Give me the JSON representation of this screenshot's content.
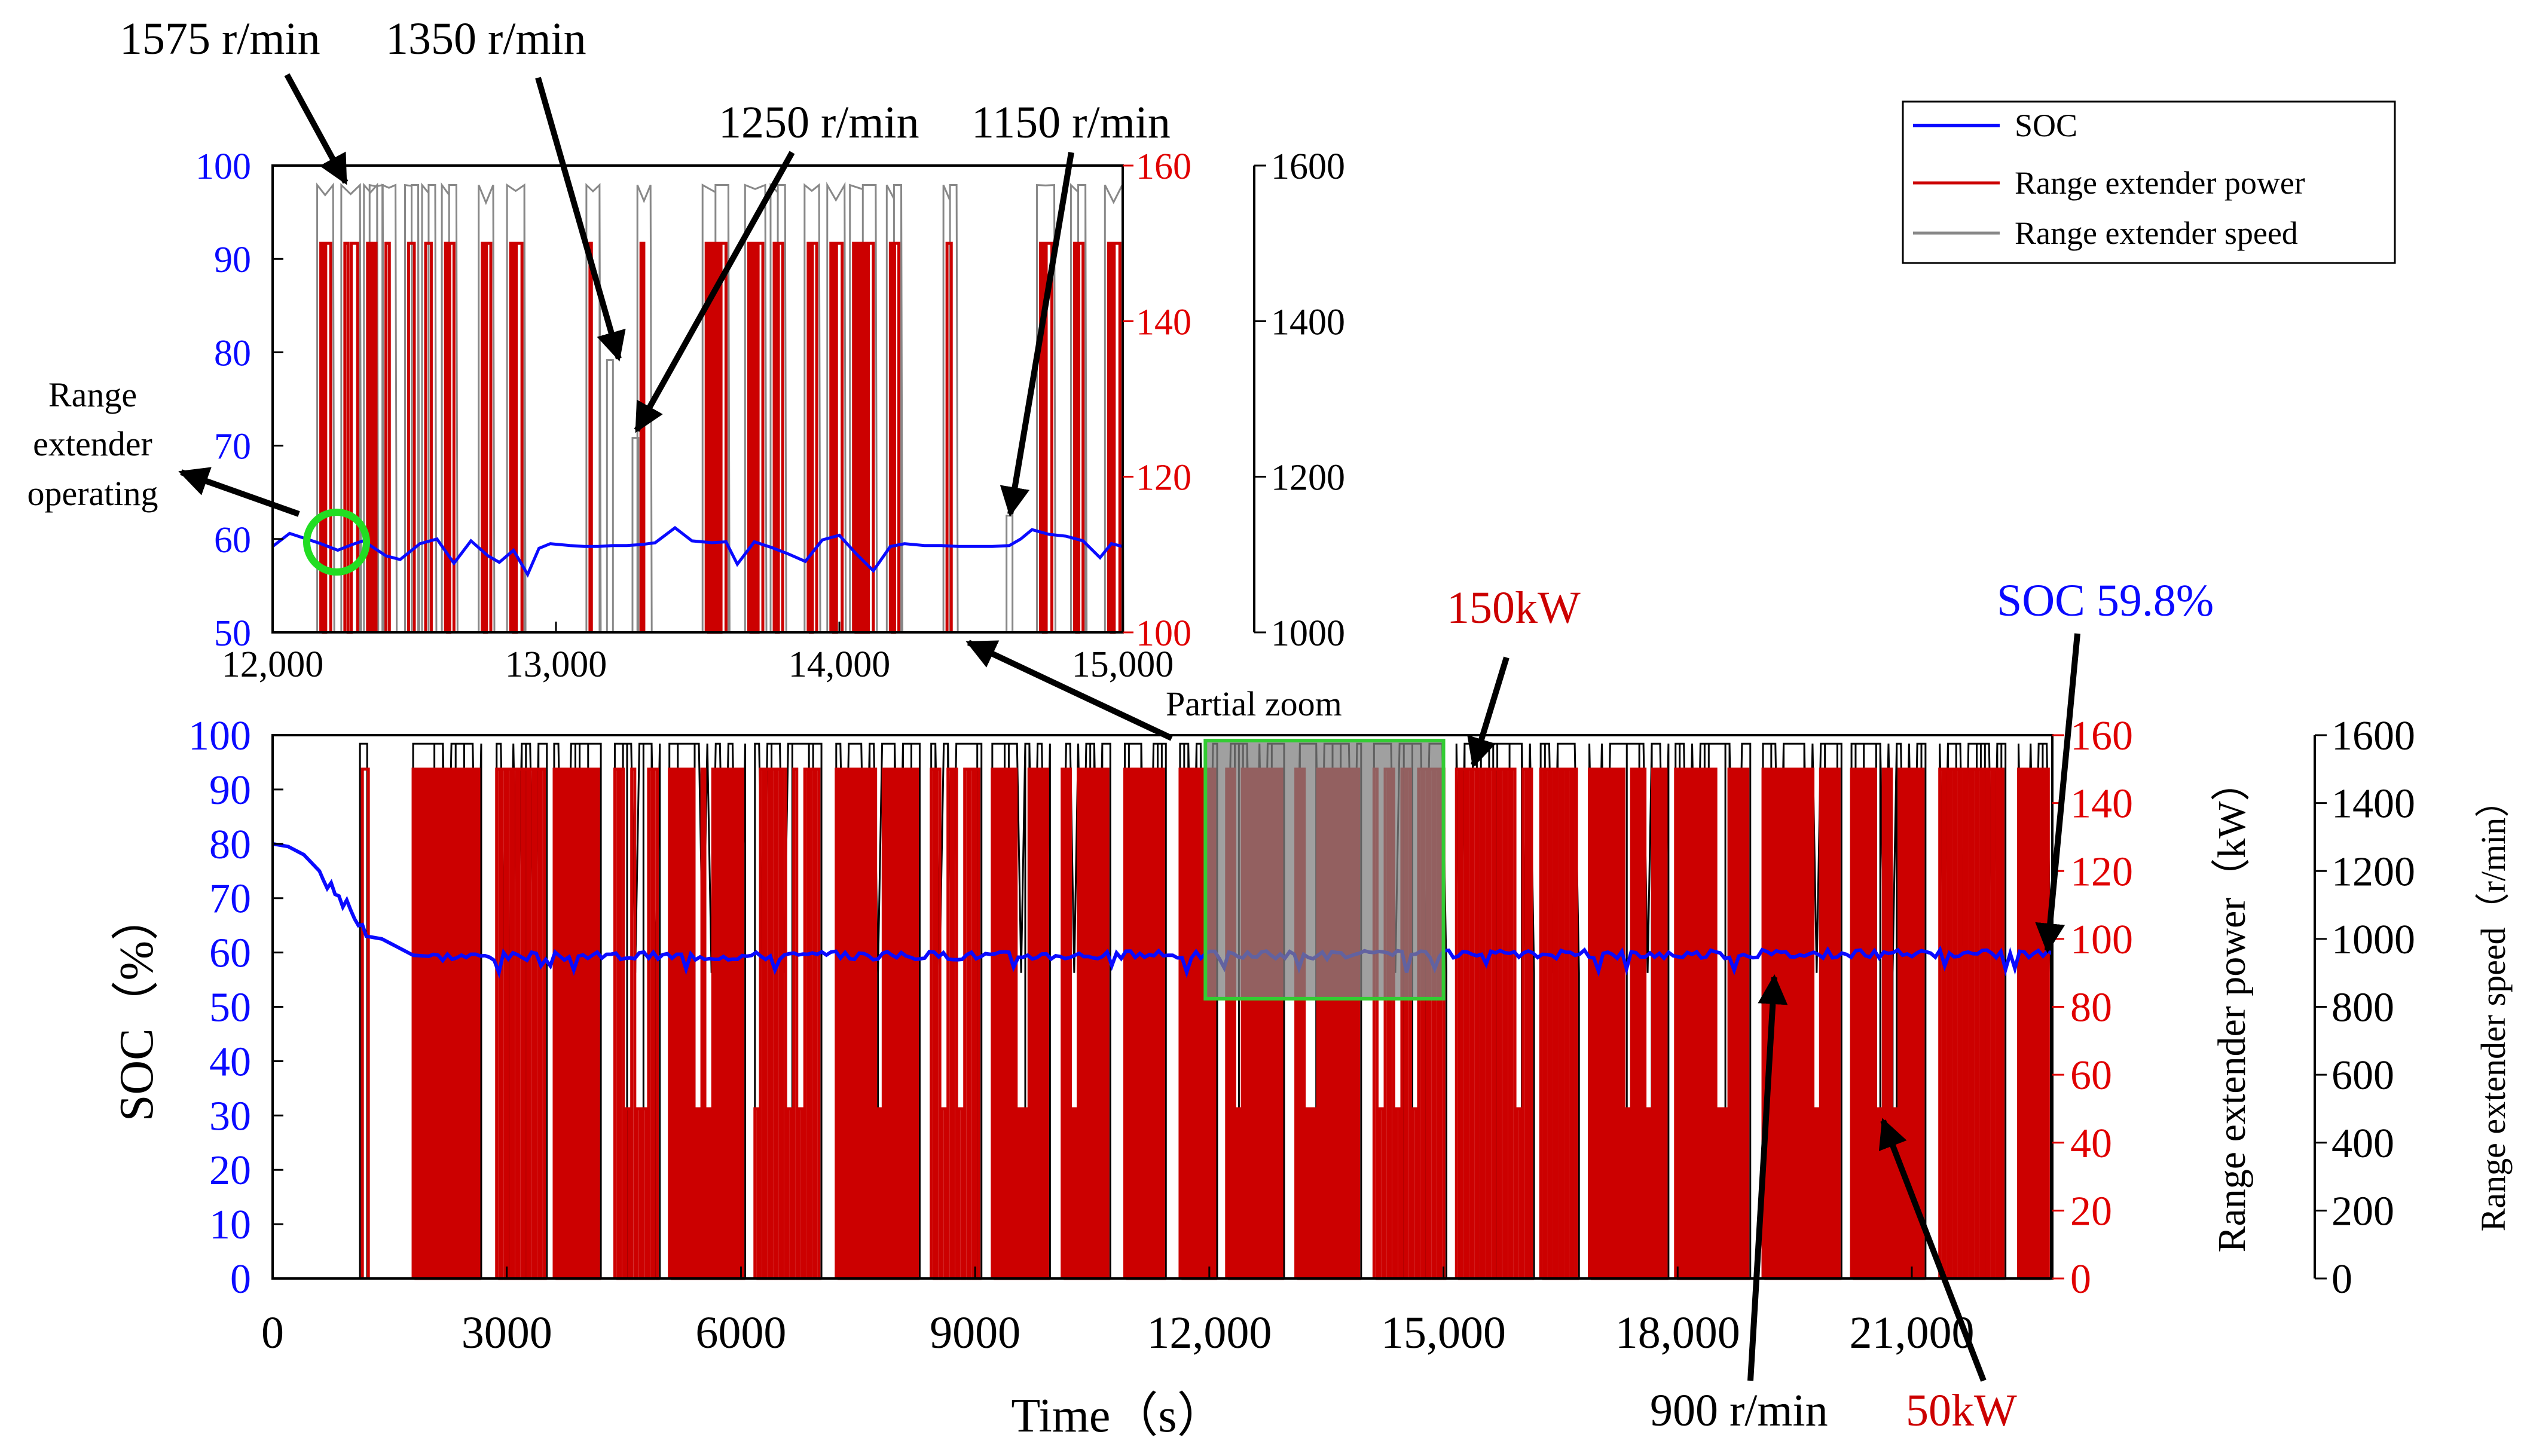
{
  "chart_data": [
    {
      "id": "inset",
      "type": "line",
      "title": "Partial zoom",
      "x": {
        "label": "",
        "range": [
          12000,
          15000
        ],
        "ticks": [
          12000,
          13000,
          14000,
          15000
        ],
        "tick_labels": [
          "12,000",
          "13,000",
          "14,000",
          "15,000"
        ]
      },
      "y_left": {
        "label": "",
        "range": [
          50,
          100
        ],
        "ticks": [
          50,
          60,
          70,
          80,
          90,
          100
        ],
        "color": "#0a0aff"
      },
      "y_right1": {
        "label": "",
        "range": [
          100,
          160
        ],
        "ticks": [
          100,
          120,
          140,
          160
        ],
        "color": "#e00000"
      },
      "y_right2": {
        "label": "",
        "range": [
          1000,
          1600
        ],
        "ticks": [
          1000,
          1200,
          1400,
          1600
        ],
        "color": "#000000"
      },
      "series": [
        {
          "name": "SOC",
          "axis": "y_left",
          "color": "#0a0aff",
          "x": [
            12000,
            12060,
            12120,
            12170,
            12230,
            12280,
            12320,
            12360,
            12400,
            12450,
            12520,
            12580,
            12640,
            12700,
            12760,
            12800,
            12850,
            12900,
            12940,
            12980,
            13050,
            13100,
            13150,
            13200,
            13250,
            13300,
            13350,
            13420,
            13480,
            13550,
            13600,
            13640,
            13700,
            13760,
            13820,
            13880,
            13940,
            14000,
            14060,
            14120,
            14180,
            14230,
            14300,
            14360,
            14420,
            14480,
            14540,
            14600,
            14640,
            14680,
            14740,
            14800,
            14860,
            14920,
            14960,
            15000
          ],
          "y": [
            59.2,
            60.6,
            60.0,
            59.5,
            58.8,
            59.4,
            59.8,
            59.0,
            58.2,
            57.8,
            59.5,
            60.0,
            57.4,
            59.8,
            58.2,
            57.5,
            58.8,
            56.2,
            59.0,
            59.5,
            59.3,
            59.2,
            59.2,
            59.3,
            59.3,
            59.4,
            59.6,
            61.2,
            59.8,
            59.6,
            59.7,
            57.3,
            59.7,
            59.1,
            58.4,
            57.6,
            59.9,
            60.4,
            58.4,
            56.6,
            59.2,
            59.5,
            59.3,
            59.3,
            59.2,
            59.2,
            59.2,
            59.3,
            60.0,
            61.0,
            60.5,
            60.3,
            59.8,
            58.0,
            59.5,
            59.2
          ]
        },
        {
          "name": "Range extender power",
          "axis": "y_right1",
          "color": "#cc0000",
          "on_intervals": [
            [
              12170,
              12205
            ],
            [
              12255,
              12300
            ],
            [
              12335,
              12345
            ],
            [
              12355,
              12365
            ],
            [
              12400,
              12412
            ],
            [
              12480,
              12500
            ],
            [
              12540,
              12560
            ],
            [
              12610,
              12640
            ],
            [
              12740,
              12770
            ],
            [
              12840,
              12880
            ],
            [
              13120,
              13125
            ],
            [
              13300,
              13310
            ],
            [
              13530,
              13600
            ],
            [
              13680,
              13730
            ],
            [
              13770,
              13800
            ],
            [
              13890,
              13920
            ],
            [
              13970,
              14010
            ],
            [
              14050,
              14120
            ],
            [
              14180,
              14210
            ],
            [
              14380,
              14395
            ],
            [
              14710,
              14750
            ],
            [
              14830,
              14860
            ],
            [
              14950,
              14990
            ]
          ],
          "on_value": 150,
          "off_value": 100
        },
        {
          "name": "Range extender speed",
          "axis": "y_right2",
          "color": "#888888",
          "peak": 1575,
          "levels": [
            1575,
            1350,
            1250,
            1150
          ]
        }
      ],
      "legend": {
        "position": "top-right",
        "entries": [
          "SOC",
          "Range extender power",
          "Range extender speed"
        ]
      },
      "annotations": [
        "1575 r/min",
        "1350 r/min",
        "1250 r/min",
        "1150 r/min",
        "Range extender operating"
      ]
    },
    {
      "id": "main",
      "type": "line",
      "title": "",
      "x": {
        "label": "Time（s）",
        "range": [
          0,
          22800
        ],
        "ticks": [
          0,
          3000,
          6000,
          9000,
          12000,
          15000,
          18000,
          21000
        ],
        "tick_labels": [
          "0",
          "3000",
          "6000",
          "9000",
          "12,000",
          "15,000",
          "18,000",
          "21,000"
        ]
      },
      "y_left": {
        "label": "SOC（%）",
        "range": [
          0,
          100
        ],
        "ticks": [
          0,
          10,
          20,
          30,
          40,
          50,
          60,
          70,
          80,
          90,
          100
        ],
        "color": "#0a0aff"
      },
      "y_right1": {
        "label": "Range extender power（kW）",
        "range": [
          0,
          160
        ],
        "ticks": [
          0,
          20,
          40,
          60,
          80,
          100,
          120,
          140,
          160
        ],
        "color": "#e00000"
      },
      "y_right2": {
        "label": "Range extender speed（r/min）",
        "range": [
          0,
          1600
        ],
        "ticks": [
          0,
          200,
          400,
          600,
          800,
          1000,
          1200,
          1400,
          1600
        ],
        "color": "#000000"
      },
      "series": [
        {
          "name": "SOC",
          "axis": "y_left",
          "color": "#0a0aff",
          "x": [
            0,
            200,
            400,
            600,
            700,
            800,
            900,
            1000,
            1100,
            1200,
            1400,
            1600,
            1800,
            2000,
            22800
          ],
          "y": [
            80.0,
            79.5,
            78.0,
            75.0,
            72.5,
            71.0,
            69.0,
            68.0,
            65.0,
            63.0,
            62.5,
            61.0,
            59.5,
            59.3,
            59.8
          ]
        },
        {
          "name": "Range extender power",
          "axis": "y_right1",
          "on_value": 150,
          "low_value": 50,
          "off_value": 0,
          "first_event": 1150,
          "dense_start": 1800,
          "color": "#cc0000"
        },
        {
          "name": "Range extender speed",
          "axis": "y_right2",
          "peak": 1575,
          "low": 900,
          "color": "#000000"
        }
      ],
      "highlight": {
        "label": "Partial zoom",
        "x_range": [
          11950,
          15000
        ],
        "y_range": [
          51.5,
          99
        ]
      },
      "annotations": [
        "150kW",
        "SOC 59.8%",
        "900 r/min",
        "50kW"
      ]
    }
  ],
  "legend": [
    {
      "label": "SOC",
      "color": "#0a0aff"
    },
    {
      "label": "Range extender power",
      "color": "#cc0000"
    },
    {
      "label": "Range extender speed",
      "color": "#888888"
    }
  ],
  "labels": {
    "inset": {
      "rpm_1575": "1575 r/min",
      "rpm_1350": "1350 r/min",
      "rpm_1250": "1250 r/min",
      "rpm_1150": "1150 r/min",
      "re_op_1": "Range",
      "re_op_2": "extender",
      "re_op_3": "operating"
    },
    "main": {
      "partial_zoom": "Partial zoom",
      "kw150": "150kW",
      "soc_final": "SOC 59.8%",
      "rpm_900": "900 r/min",
      "kw50": "50kW",
      "xlabel": "Time（s）",
      "ylabel_left": "SOC（%）",
      "ylabel_power": "Range extender power（kW）",
      "ylabel_speed": "Range extender speed（r/min）"
    }
  },
  "colors": {
    "soc": "#0a0aff",
    "power": "#cc0000",
    "speed_inset": "#888888",
    "speed_main": "#000000",
    "axis_red": "#e00000",
    "highlight": "#33cc33"
  }
}
